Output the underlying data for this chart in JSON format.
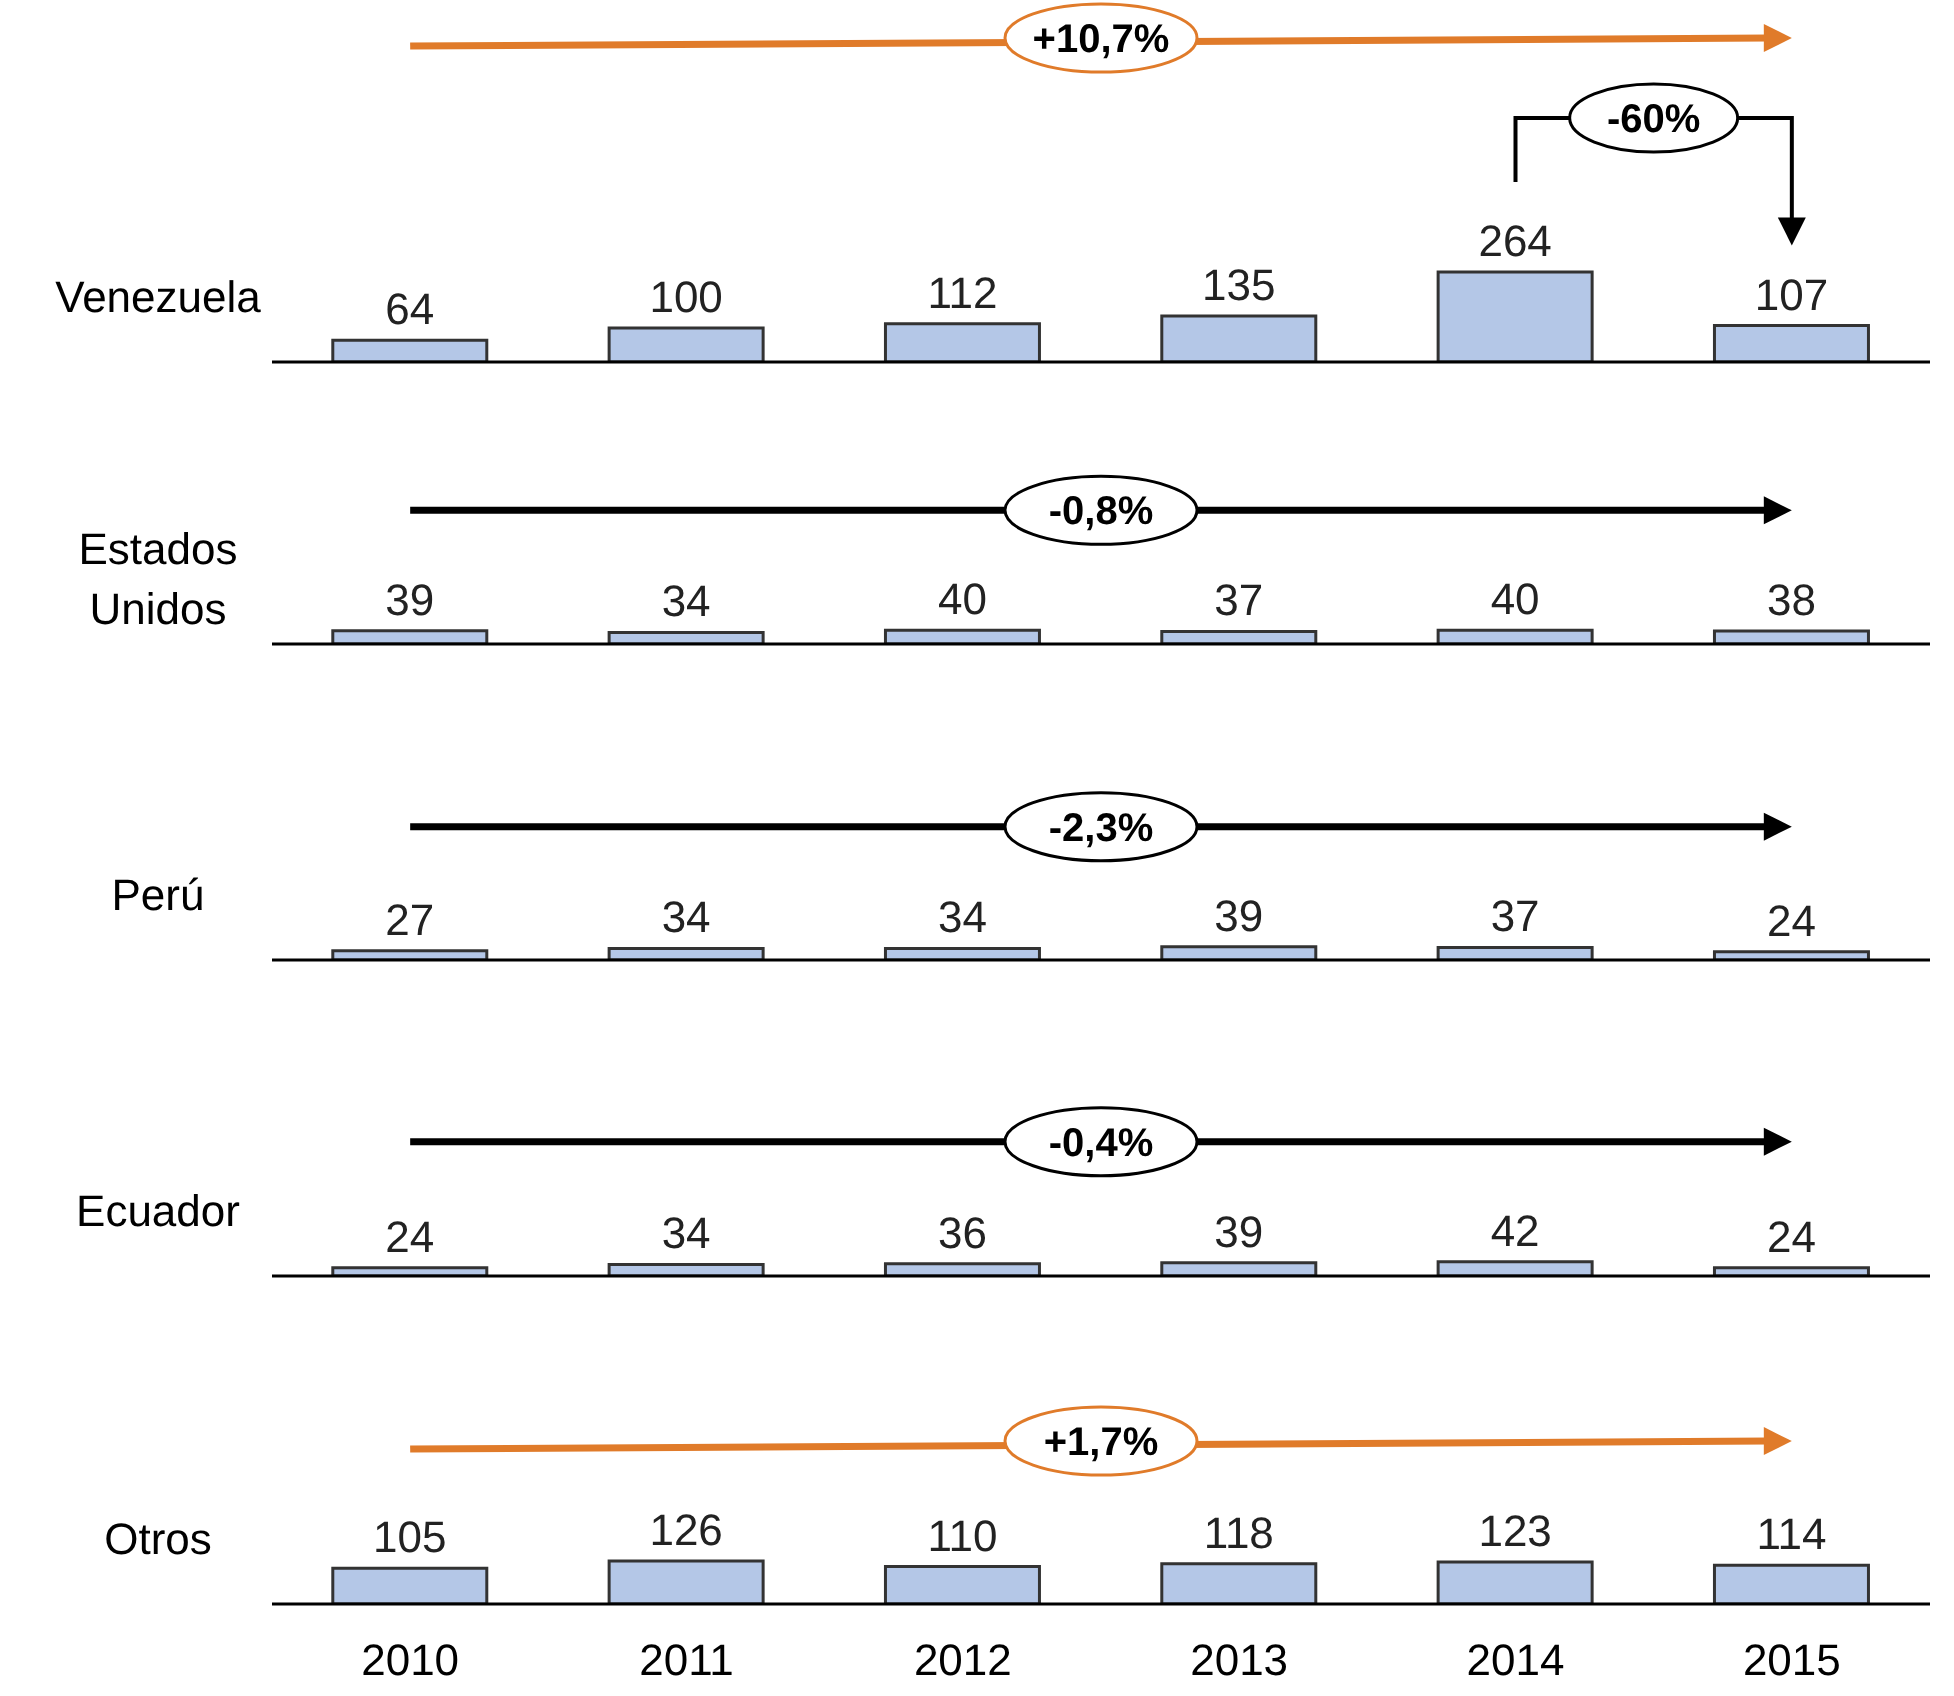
{
  "chart_data": [
    {
      "type": "bar",
      "title": "Venezuela",
      "categories": [
        "2010",
        "2011",
        "2012",
        "2013",
        "2014",
        "2015"
      ],
      "values": [
        64,
        100,
        112,
        135,
        264,
        107
      ],
      "color": "#b4c7e7",
      "data_labels": true,
      "tick_labels": false,
      "annotations": [
        "+10,7%",
        "-60%"
      ]
    },
    {
      "type": "bar",
      "title": "Estados Unidos",
      "categories": [
        "2010",
        "2011",
        "2012",
        "2013",
        "2014",
        "2015"
      ],
      "values": [
        39,
        34,
        40,
        37,
        40,
        38
      ],
      "color": "#b4c7e7",
      "data_labels": true,
      "tick_labels": false,
      "annotations": [
        "-0,8%"
      ]
    },
    {
      "type": "bar",
      "title": "Perú",
      "categories": [
        "2010",
        "2011",
        "2012",
        "2013",
        "2014",
        "2015"
      ],
      "values": [
        27,
        34,
        34,
        39,
        37,
        24
      ],
      "color": "#b4c7e7",
      "data_labels": true,
      "tick_labels": false,
      "annotations": [
        "-2,3%"
      ]
    },
    {
      "type": "bar",
      "title": "Ecuador",
      "categories": [
        "2010",
        "2011",
        "2012",
        "2013",
        "2014",
        "2015"
      ],
      "values": [
        24,
        34,
        36,
        39,
        42,
        24
      ],
      "color": "#b4c7e7",
      "data_labels": true,
      "tick_labels": false,
      "annotations": [
        "-0,4%"
      ]
    },
    {
      "type": "bar",
      "title": "Otros",
      "categories": [
        "2010",
        "2011",
        "2012",
        "2013",
        "2014",
        "2015"
      ],
      "values": [
        105,
        126,
        110,
        118,
        123,
        114
      ],
      "color": "#b4c7e7",
      "data_labels": true,
      "tick_labels": "x",
      "annotations": [
        "+1,7%"
      ]
    }
  ]
}
